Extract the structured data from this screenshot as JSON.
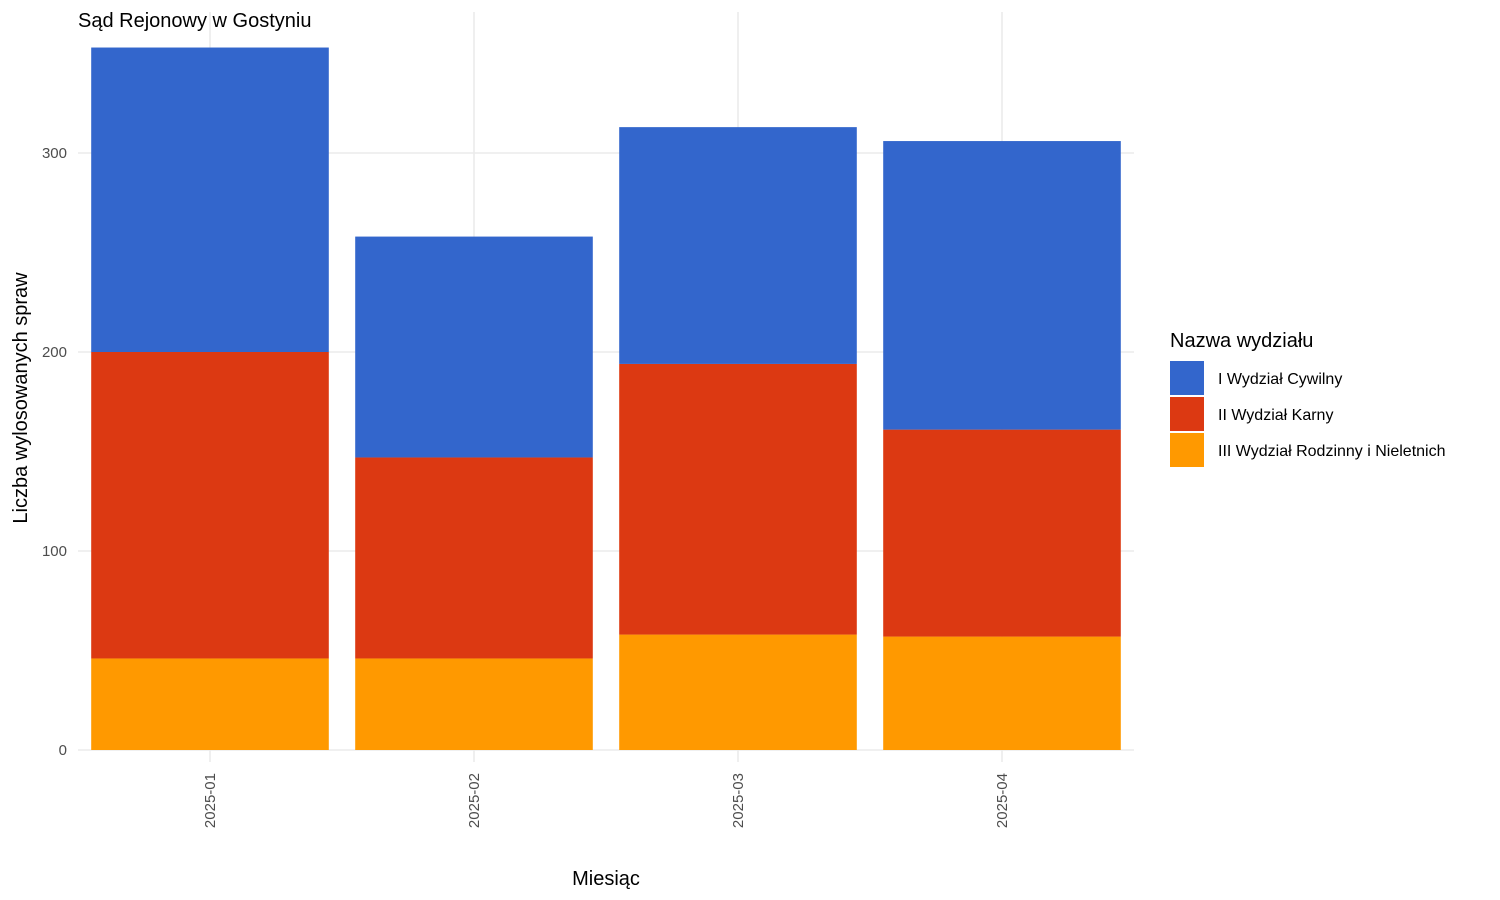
{
  "chart_data": {
    "type": "bar",
    "stacked": true,
    "title": "Sąd Rejonowy w Gostyniu",
    "xlabel": "Miesiąc",
    "ylabel": "Liczba wylosowanych spraw",
    "categories": [
      "2025-01",
      "2025-02",
      "2025-03",
      "2025-04"
    ],
    "ylim": [
      0,
      370
    ],
    "yticks": [
      0,
      100,
      200,
      300
    ],
    "grid": true,
    "legend": {
      "title": "Nazwa wydziału",
      "position": "right"
    },
    "series": [
      {
        "name": "III Wydział Rodzinny i Nieletnich",
        "color": "#FF9900",
        "values": [
          46,
          46,
          58,
          57
        ]
      },
      {
        "name": "II Wydział Karny",
        "color": "#DC3912",
        "values": [
          154,
          101,
          136,
          104
        ]
      },
      {
        "name": "I Wydział Cywilny",
        "color": "#3366CC",
        "values": [
          153,
          111,
          119,
          145
        ]
      }
    ],
    "legend_order": [
      "I Wydział Cywilny",
      "II Wydział Karny",
      "III Wydział Rodzinny i Nieletnich"
    ]
  }
}
